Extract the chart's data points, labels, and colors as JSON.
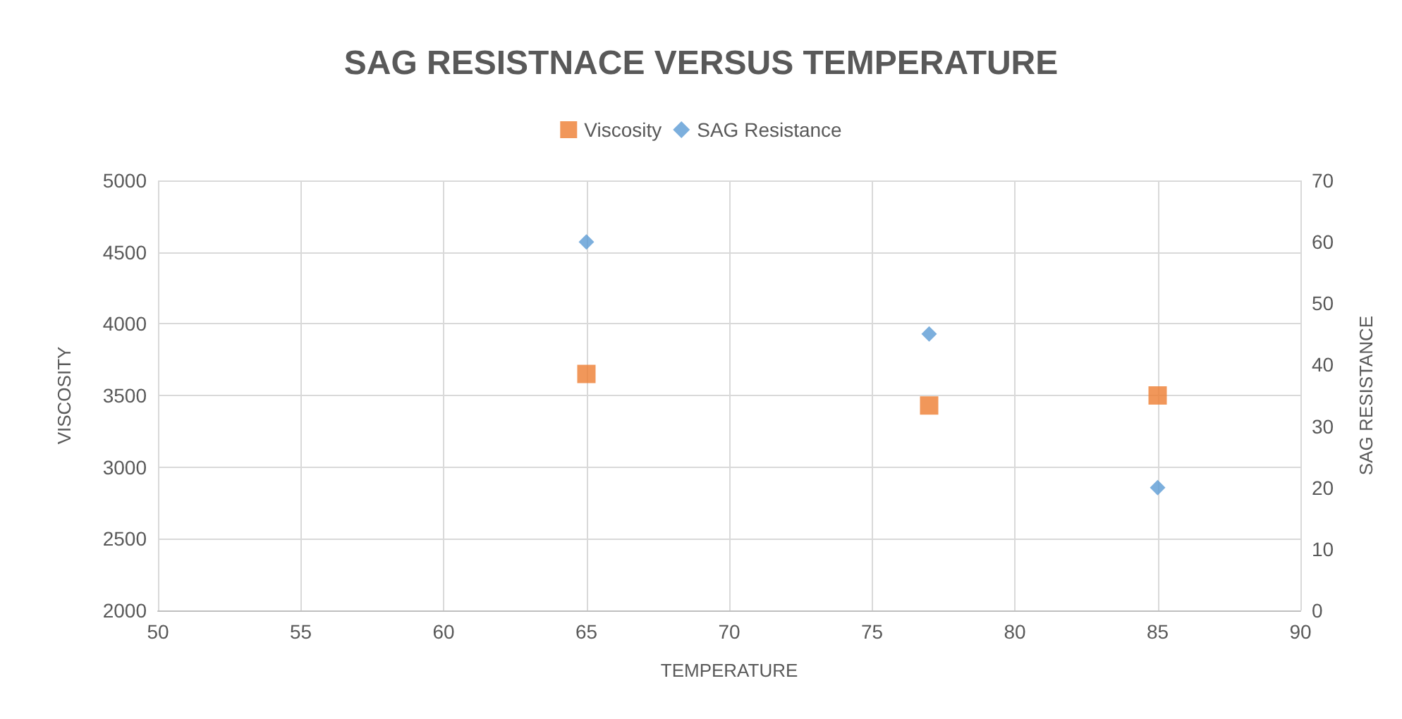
{
  "chart_data": {
    "type": "scatter",
    "title": "SAG RESISTNACE VERSUS TEMPERATURE",
    "xlabel": "TEMPERATURE",
    "ylabel": "VISCOSITY",
    "y2label": "SAG RESISTANCE",
    "series": [
      {
        "name": "Viscosity",
        "color": "#ed7d31",
        "marker": "square",
        "x": [
          65,
          77,
          85
        ],
        "values": [
          3650,
          3430,
          3500
        ]
      },
      {
        "name": "SAG Resistance",
        "color": "#5b9bd5",
        "marker": "diamond",
        "axis": "y2",
        "x": [
          65,
          77,
          85
        ],
        "values": [
          60,
          45,
          20
        ]
      }
    ],
    "xlim": [
      50,
      90
    ],
    "xticks": [
      50,
      55,
      60,
      65,
      70,
      75,
      80,
      85,
      90
    ],
    "ylim": [
      2000,
      5000
    ],
    "yticks": [
      2000,
      2500,
      3000,
      3500,
      4000,
      4500,
      5000
    ],
    "y2lim": [
      0,
      70
    ],
    "y2ticks": [
      0,
      10,
      20,
      30,
      40,
      50,
      60,
      70
    ],
    "grid": true,
    "legend": "top"
  }
}
